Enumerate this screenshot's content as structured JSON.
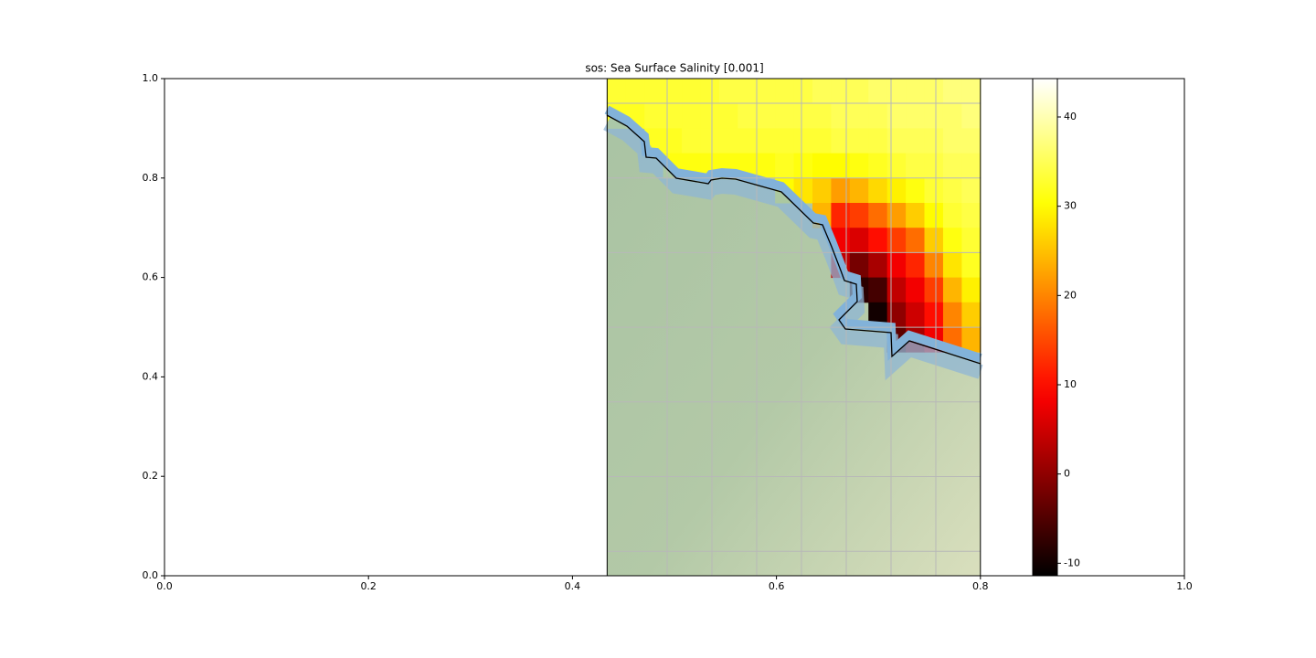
{
  "chart_data": {
    "type": "map",
    "title": "sos: Sea Surface Salinity [0.001]",
    "xlim": [
      0,
      1
    ],
    "ylim": [
      0,
      1
    ],
    "xticks": [
      {
        "value": 0,
        "label": "0.0"
      },
      0.2,
      0.4,
      0.6,
      0.8,
      {
        "value": 1,
        "label": "1.0"
      }
    ],
    "yticks": [
      {
        "value": 0,
        "label": "0.0"
      },
      0.2,
      0.4,
      0.6,
      0.8,
      {
        "value": 1,
        "label": "1.0"
      }
    ],
    "map_xlim": [
      0.434,
      0.8
    ],
    "colormap": "hot",
    "clim": [
      -11.4,
      44.3
    ],
    "cticks": [
      -10,
      0,
      10,
      20,
      30,
      40
    ],
    "field": [
      [
        33,
        32
      ],
      [
        33,
        32
      ],
      [
        33,
        33,
        32
      ],
      [
        33,
        33,
        32,
        31
      ],
      [
        33,
        33,
        33,
        31
      ],
      [
        33,
        33,
        33,
        31
      ],
      [
        34,
        33,
        33,
        31
      ],
      [
        34,
        34,
        33,
        31
      ],
      [
        34,
        34,
        33,
        31
      ],
      [
        34,
        34,
        33,
        32,
        30
      ],
      [
        34,
        34,
        33,
        31,
        28
      ],
      [
        35,
        34,
        33,
        30,
        26,
        24
      ],
      [
        35,
        35,
        34,
        30,
        22,
        12,
        8,
        4
      ],
      [
        35,
        35,
        34,
        31,
        24,
        14,
        6,
        -2,
        -8
      ],
      [
        36,
        35,
        34,
        32,
        27,
        18,
        10,
        2,
        -6,
        -10
      ],
      [
        36,
        36,
        35,
        33,
        29,
        22,
        14,
        8,
        4,
        0,
        -4
      ],
      [
        36,
        36,
        35,
        34,
        31,
        26,
        18,
        12,
        8,
        5,
        2
      ],
      [
        36,
        36,
        35,
        34,
        33,
        30,
        26,
        20,
        14,
        10,
        8
      ],
      [
        37,
        36,
        36,
        35,
        34,
        33,
        31,
        28,
        24,
        20,
        18
      ],
      [
        37,
        37,
        36,
        35,
        35,
        34,
        33,
        32,
        29,
        26,
        24
      ]
    ]
  }
}
